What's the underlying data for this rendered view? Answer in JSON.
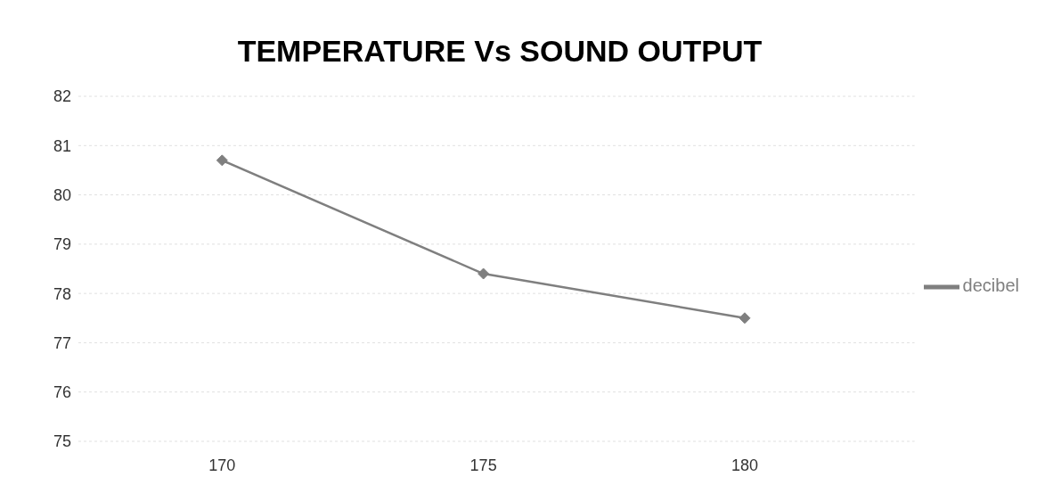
{
  "chart_data": {
    "type": "line",
    "title": "TEMPERATURE Vs SOUND OUTPUT",
    "categories": [
      "170",
      "175",
      "180"
    ],
    "series": [
      {
        "name": "decibel",
        "color": "#7f7f7f",
        "values": [
          80.7,
          78.4,
          77.5
        ]
      }
    ],
    "ylim": [
      75,
      82
    ],
    "yticks": [
      75,
      76,
      77,
      78,
      79,
      80,
      81,
      82
    ],
    "grid": "y",
    "legend": "right",
    "marker": "diamond",
    "line_style": "solid"
  }
}
